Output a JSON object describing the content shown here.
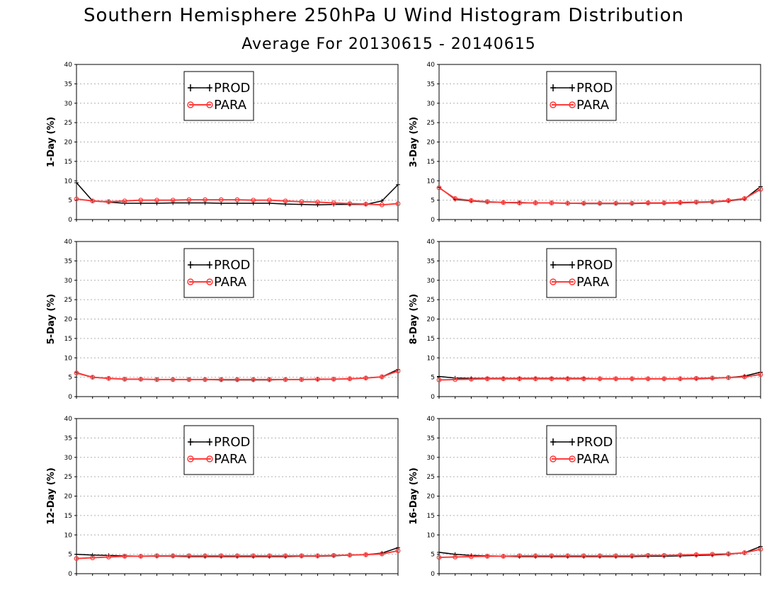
{
  "title": "Southern Hemisphere 250hPa U Wind Histogram Distribution",
  "subtitle": "Average For 20130615 - 20140615",
  "colors": {
    "prod": "#000000",
    "para": "#ff3b3b"
  },
  "chart_data": [
    {
      "type": "line",
      "ylabel": "1-Day (%)",
      "ylim": [
        0,
        40
      ],
      "yticks": [
        0,
        5,
        10,
        15,
        20,
        25,
        30,
        35,
        40
      ],
      "grid": true,
      "legend": "top-center",
      "x": [
        1,
        2,
        3,
        4,
        5,
        6,
        7,
        8,
        9,
        10,
        11,
        12,
        13,
        14,
        15,
        16,
        17,
        18,
        19,
        20,
        21
      ],
      "series": [
        {
          "name": "PROD",
          "values": [
            9.5,
            4.8,
            4.5,
            4.2,
            4.2,
            4.2,
            4.3,
            4.3,
            4.3,
            4.2,
            4.2,
            4.2,
            4.2,
            4.0,
            3.9,
            3.8,
            3.9,
            3.9,
            3.9,
            4.8,
            9.0
          ]
        },
        {
          "name": "PARA",
          "values": [
            5.3,
            4.8,
            4.6,
            4.8,
            5.0,
            5.0,
            5.0,
            5.1,
            5.1,
            5.1,
            5.1,
            5.0,
            5.0,
            4.8,
            4.6,
            4.5,
            4.3,
            4.1,
            4.0,
            3.8,
            4.1
          ]
        }
      ]
    },
    {
      "type": "line",
      "ylabel": "3-Day (%)",
      "ylim": [
        0,
        40
      ],
      "yticks": [
        0,
        5,
        10,
        15,
        20,
        25,
        30,
        35,
        40
      ],
      "grid": true,
      "legend": "top-center",
      "x": [
        1,
        2,
        3,
        4,
        5,
        6,
        7,
        8,
        9,
        10,
        11,
        12,
        13,
        14,
        15,
        16,
        17,
        18,
        19,
        20,
        21
      ],
      "series": [
        {
          "name": "PROD",
          "values": [
            8.3,
            5.2,
            4.8,
            4.5,
            4.4,
            4.4,
            4.3,
            4.3,
            4.2,
            4.1,
            4.1,
            4.1,
            4.1,
            4.2,
            4.2,
            4.3,
            4.4,
            4.5,
            4.8,
            5.3,
            8.5
          ]
        },
        {
          "name": "PARA",
          "values": [
            8.2,
            5.4,
            4.9,
            4.6,
            4.4,
            4.3,
            4.3,
            4.3,
            4.2,
            4.2,
            4.2,
            4.2,
            4.2,
            4.3,
            4.3,
            4.4,
            4.5,
            4.6,
            4.9,
            5.4,
            7.8
          ]
        }
      ]
    },
    {
      "type": "line",
      "ylabel": "5-Day (%)",
      "ylim": [
        0,
        40
      ],
      "yticks": [
        0,
        5,
        10,
        15,
        20,
        25,
        30,
        35,
        40
      ],
      "grid": true,
      "legend": "top-center",
      "x": [
        1,
        2,
        3,
        4,
        5,
        6,
        7,
        8,
        9,
        10,
        11,
        12,
        13,
        14,
        15,
        16,
        17,
        18,
        19,
        20,
        21
      ],
      "series": [
        {
          "name": "PROD",
          "values": [
            6.2,
            5.0,
            4.7,
            4.5,
            4.5,
            4.4,
            4.4,
            4.4,
            4.4,
            4.3,
            4.3,
            4.3,
            4.3,
            4.4,
            4.4,
            4.4,
            4.5,
            4.6,
            4.8,
            5.1,
            7.0
          ]
        },
        {
          "name": "PARA",
          "values": [
            6.1,
            5.0,
            4.7,
            4.5,
            4.5,
            4.4,
            4.4,
            4.4,
            4.4,
            4.4,
            4.4,
            4.4,
            4.4,
            4.4,
            4.4,
            4.5,
            4.5,
            4.6,
            4.8,
            5.1,
            6.6
          ]
        }
      ]
    },
    {
      "type": "line",
      "ylabel": "8-Day (%)",
      "ylim": [
        0,
        40
      ],
      "yticks": [
        0,
        5,
        10,
        15,
        20,
        25,
        30,
        35,
        40
      ],
      "grid": true,
      "legend": "top-center",
      "x": [
        1,
        2,
        3,
        4,
        5,
        6,
        7,
        8,
        9,
        10,
        11,
        12,
        13,
        14,
        15,
        16,
        17,
        18,
        19,
        20,
        21
      ],
      "series": [
        {
          "name": "PROD",
          "values": [
            5.2,
            4.8,
            4.7,
            4.7,
            4.7,
            4.7,
            4.7,
            4.7,
            4.7,
            4.7,
            4.6,
            4.6,
            4.6,
            4.6,
            4.6,
            4.6,
            4.6,
            4.7,
            4.9,
            5.3,
            6.3
          ]
        },
        {
          "name": "PARA",
          "values": [
            4.3,
            4.4,
            4.5,
            4.6,
            4.6,
            4.6,
            4.6,
            4.6,
            4.6,
            4.6,
            4.6,
            4.6,
            4.6,
            4.6,
            4.6,
            4.6,
            4.7,
            4.8,
            4.9,
            5.1,
            5.7
          ]
        }
      ]
    },
    {
      "type": "line",
      "ylabel": "12-Day (%)",
      "ylim": [
        0,
        40
      ],
      "yticks": [
        0,
        5,
        10,
        15,
        20,
        25,
        30,
        35,
        40
      ],
      "grid": true,
      "legend": "top-center",
      "x": [
        1,
        2,
        3,
        4,
        5,
        6,
        7,
        8,
        9,
        10,
        11,
        12,
        13,
        14,
        15,
        16,
        17,
        18,
        19,
        20,
        21
      ],
      "series": [
        {
          "name": "PROD",
          "values": [
            5.0,
            4.8,
            4.7,
            4.6,
            4.5,
            4.5,
            4.5,
            4.4,
            4.4,
            4.4,
            4.4,
            4.4,
            4.4,
            4.4,
            4.5,
            4.5,
            4.6,
            4.8,
            4.9,
            5.3,
            6.7
          ]
        },
        {
          "name": "PARA",
          "values": [
            3.9,
            4.1,
            4.3,
            4.5,
            4.5,
            4.6,
            4.6,
            4.6,
            4.6,
            4.6,
            4.6,
            4.6,
            4.6,
            4.6,
            4.6,
            4.6,
            4.7,
            4.8,
            4.9,
            5.1,
            5.9
          ]
        }
      ]
    },
    {
      "type": "line",
      "ylabel": "16-Day (%)",
      "ylim": [
        0,
        40
      ],
      "yticks": [
        0,
        5,
        10,
        15,
        20,
        25,
        30,
        35,
        40
      ],
      "grid": true,
      "legend": "top-center",
      "x": [
        1,
        2,
        3,
        4,
        5,
        6,
        7,
        8,
        9,
        10,
        11,
        12,
        13,
        14,
        15,
        16,
        17,
        18,
        19,
        20,
        21
      ],
      "series": [
        {
          "name": "PROD",
          "values": [
            5.5,
            5.0,
            4.7,
            4.6,
            4.5,
            4.4,
            4.4,
            4.4,
            4.4,
            4.4,
            4.4,
            4.4,
            4.4,
            4.5,
            4.5,
            4.6,
            4.7,
            4.8,
            5.0,
            5.4,
            7.0
          ]
        },
        {
          "name": "PARA",
          "values": [
            4.2,
            4.3,
            4.4,
            4.5,
            4.5,
            4.6,
            4.6,
            4.6,
            4.6,
            4.6,
            4.6,
            4.6,
            4.6,
            4.7,
            4.7,
            4.8,
            4.9,
            5.0,
            5.1,
            5.4,
            6.3
          ]
        }
      ]
    }
  ]
}
